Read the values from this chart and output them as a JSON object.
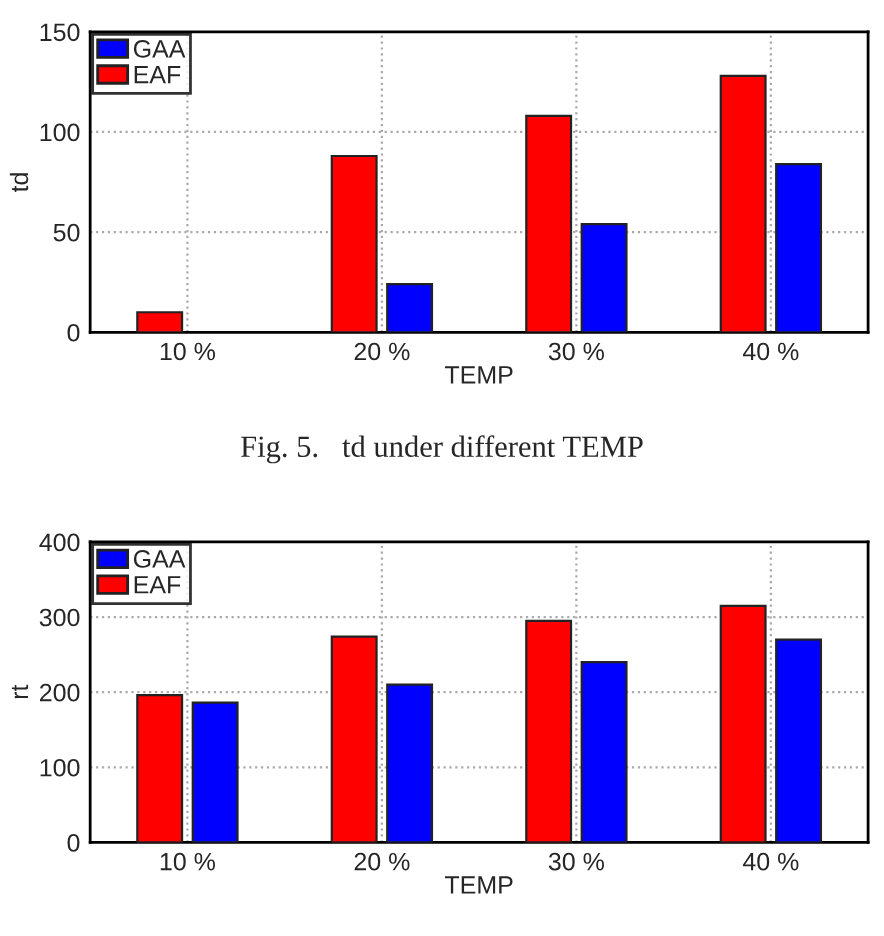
{
  "chart_data": [
    {
      "type": "bar",
      "xlabel": "TEMP",
      "ylabel": "td",
      "categories": [
        "10 %",
        "20 %",
        "30 %",
        "40 %"
      ],
      "series": [
        {
          "name": "EAF",
          "color": "#ff0000",
          "values": [
            10,
            88,
            108,
            128
          ]
        },
        {
          "name": "GAA",
          "color": "#0000ff",
          "values": [
            null,
            24,
            54,
            84
          ]
        }
      ],
      "ylim": [
        0,
        150
      ],
      "yticks": [
        0,
        50,
        100,
        150
      ],
      "grid": true,
      "legend": "top left",
      "annotations": [
        "Fig. 5.   td under different TEMP"
      ]
    },
    {
      "type": "bar",
      "xlabel": "TEMP",
      "ylabel": "rt",
      "categories": [
        "10 %",
        "20 %",
        "30 %",
        "40 %"
      ],
      "series": [
        {
          "name": "EAF",
          "color": "#ff0000",
          "values": [
            196,
            274,
            295,
            315
          ]
        },
        {
          "name": "GAA",
          "color": "#0000ff",
          "values": [
            186,
            210,
            240,
            270
          ]
        }
      ],
      "ylim": [
        0,
        400
      ],
      "yticks": [
        0,
        100,
        200,
        300,
        400
      ],
      "grid": true,
      "legend": "top left"
    }
  ]
}
